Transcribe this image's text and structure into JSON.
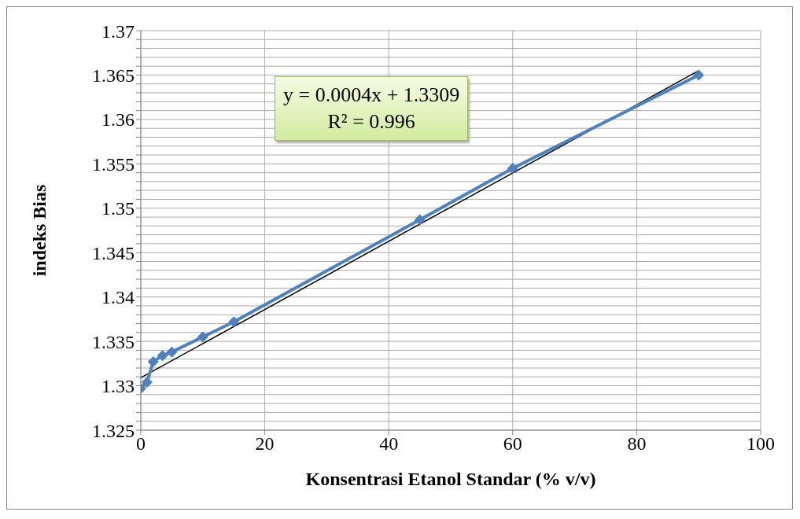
{
  "chart_data": {
    "type": "line",
    "xlabel": "Konsentrasi Etanol Standar (% v/v)",
    "ylabel": "indeks Bias",
    "x": [
      0,
      1,
      2,
      3.5,
      5,
      10,
      15,
      45,
      60,
      90
    ],
    "series": [
      {
        "color": "#4f81bd",
        "values": [
          1.3297,
          1.3304,
          1.3327,
          1.3334,
          1.3338,
          1.3355,
          1.3372,
          1.3487,
          1.3545,
          1.365
        ],
        "marker": "diamond"
      },
      {
        "type": "line",
        "color": "#000000",
        "x": [
          0,
          90
        ],
        "values": [
          1.3309,
          1.3655
        ],
        "marker": "none"
      }
    ],
    "xlim": [
      0,
      100
    ],
    "xticks": [
      0,
      20,
      40,
      60,
      80,
      100
    ],
    "ylim": [
      1.325,
      1.37
    ],
    "yticks": [
      1.325,
      {
        "value": 1.326,
        "label": null
      },
      {
        "value": 1.327,
        "label": null
      },
      {
        "value": 1.328,
        "label": null
      },
      {
        "value": 1.329,
        "label": null
      },
      1.33,
      {
        "value": 1.331,
        "label": null
      },
      {
        "value": 1.332,
        "label": null
      },
      {
        "value": 1.333,
        "label": null
      },
      {
        "value": 1.334,
        "label": null
      },
      1.335,
      {
        "value": 1.336,
        "label": null
      },
      {
        "value": 1.337,
        "label": null
      },
      {
        "value": 1.338,
        "label": null
      },
      {
        "value": 1.339,
        "label": null
      },
      1.34,
      {
        "value": 1.341,
        "label": null
      },
      {
        "value": 1.342,
        "label": null
      },
      {
        "value": 1.343,
        "label": null
      },
      {
        "value": 1.344,
        "label": null
      },
      1.345,
      {
        "value": 1.346,
        "label": null
      },
      {
        "value": 1.347,
        "label": null
      },
      {
        "value": 1.348,
        "label": null
      },
      {
        "value": 1.349,
        "label": null
      },
      1.35,
      {
        "value": 1.351,
        "label": null
      },
      {
        "value": 1.352,
        "label": null
      },
      {
        "value": 1.353,
        "label": null
      },
      {
        "value": 1.354,
        "label": null
      },
      1.355,
      {
        "value": 1.356,
        "label": null
      },
      {
        "value": 1.357,
        "label": null
      },
      {
        "value": 1.358,
        "label": null
      },
      {
        "value": 1.359,
        "label": null
      },
      1.36,
      {
        "value": 1.361,
        "label": null
      },
      {
        "value": 1.362,
        "label": null
      },
      {
        "value": 1.363,
        "label": null
      },
      {
        "value": 1.364,
        "label": null
      },
      1.365,
      {
        "value": 1.366,
        "label": null
      },
      {
        "value": 1.367,
        "label": null
      },
      {
        "value": 1.368,
        "label": null
      },
      {
        "value": 1.369,
        "label": null
      },
      1.37
    ],
    "grid": true,
    "annotations": [
      "y = 0.0004x + 1.3309",
      "R² = 0.996"
    ]
  }
}
